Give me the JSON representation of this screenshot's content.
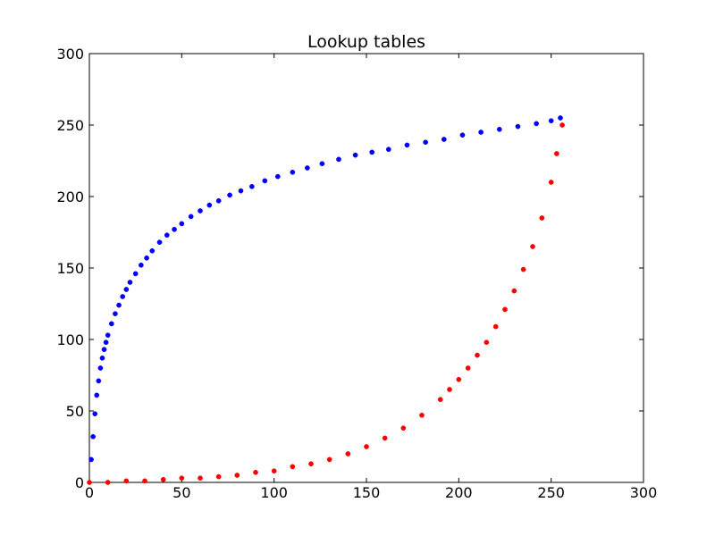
{
  "chart_data": {
    "type": "scatter",
    "title": "Lookup tables",
    "xlabel": "",
    "ylabel": "",
    "xlim": [
      0,
      300
    ],
    "ylim": [
      0,
      300
    ],
    "xticks": [
      "0",
      "50",
      "100",
      "150",
      "200",
      "250",
      "300"
    ],
    "yticks": [
      "0",
      "50",
      "100",
      "150",
      "200",
      "250",
      "300"
    ],
    "grid": false,
    "series": [
      {
        "color": "#0000ff",
        "x": [
          1,
          2,
          3,
          4,
          5,
          6,
          7,
          8,
          9,
          10,
          12,
          14,
          16,
          18,
          20,
          22,
          25,
          28,
          31,
          34,
          38,
          42,
          46,
          50,
          55,
          60,
          65,
          70,
          76,
          82,
          88,
          95,
          102,
          110,
          118,
          126,
          135,
          144,
          153,
          162,
          172,
          182,
          192,
          202,
          212,
          222,
          232,
          242,
          250,
          255
        ],
        "y": [
          16,
          32,
          48,
          61,
          71,
          80,
          87,
          93,
          98,
          103,
          111,
          118,
          124,
          130,
          135,
          140,
          146,
          152,
          157,
          162,
          168,
          173,
          177,
          181,
          186,
          190,
          194,
          197,
          201,
          204,
          207,
          211,
          214,
          217,
          220,
          223,
          226,
          229,
          231,
          233,
          236,
          238,
          240,
          243,
          245,
          247,
          249,
          251,
          253,
          255
        ]
      },
      {
        "color": "#ff0000",
        "x": [
          0,
          10,
          20,
          30,
          40,
          50,
          60,
          70,
          80,
          90,
          100,
          110,
          120,
          130,
          140,
          150,
          160,
          170,
          180,
          190,
          195,
          200,
          205,
          210,
          215,
          220,
          225,
          230,
          235,
          240,
          245,
          250,
          253,
          256
        ],
        "y": [
          0,
          0,
          1,
          1,
          2,
          3,
          3,
          4,
          5,
          7,
          8,
          11,
          13,
          16,
          20,
          25,
          31,
          38,
          47,
          58,
          65,
          72,
          80,
          89,
          98,
          109,
          121,
          134,
          149,
          165,
          185,
          210,
          230,
          250
        ]
      }
    ]
  }
}
